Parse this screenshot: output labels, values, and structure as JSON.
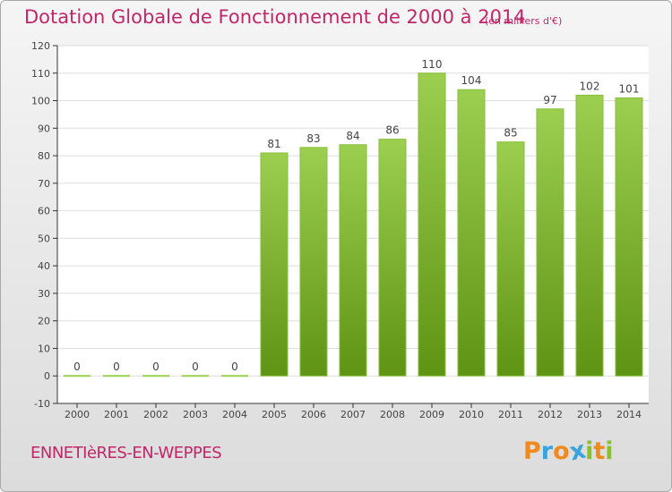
{
  "chart_data": {
    "type": "bar",
    "title": "Dotation Globale de Fonctionnement de 2000 à 2014",
    "subtitle": "(en milliers d'€)",
    "categories": [
      "2000",
      "2001",
      "2002",
      "2003",
      "2004",
      "2005",
      "2006",
      "2007",
      "2008",
      "2009",
      "2010",
      "2011",
      "2012",
      "2013",
      "2014"
    ],
    "values": [
      0,
      0,
      0,
      0,
      0,
      81,
      83,
      84,
      86,
      110,
      104,
      85,
      97,
      102,
      101
    ],
    "ylim": [
      -10,
      120
    ],
    "yticks": [
      -10,
      0,
      10,
      20,
      30,
      40,
      50,
      60,
      70,
      80,
      90,
      100,
      110,
      120
    ],
    "grid": true,
    "colors": {
      "bar_top": "#9ccf4f",
      "bar_bottom": "#5f9313",
      "bar_edge": "#86bf3a",
      "grid": "#dddddd",
      "axis": "#333333",
      "text": "#444444",
      "title": "#c0276a"
    }
  },
  "commune": "ENNETIèRES-EN-WEPPES",
  "logo": {
    "text": "Proxiti",
    "letters": [
      {
        "ch": "P",
        "color": "#f08a1c"
      },
      {
        "ch": "r",
        "color": "#3aa3dc"
      },
      {
        "ch": "o",
        "color": "#f08a1c"
      },
      {
        "ch": "x",
        "color": "#3aa3dc"
      },
      {
        "ch": "i",
        "color": "#8bbf2d"
      },
      {
        "ch": "t",
        "color": "#f08a1c"
      },
      {
        "ch": "i",
        "color": "#8bbf2d"
      }
    ]
  }
}
